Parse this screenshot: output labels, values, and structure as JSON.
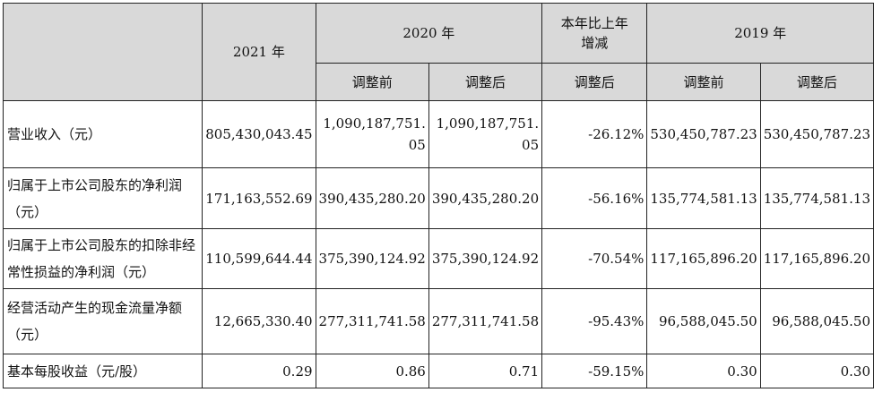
{
  "header": {
    "y2021": "2021 年",
    "y2020": "2020 年",
    "yoy": "本年比上年增减",
    "y2019": "2019 年",
    "before_adj": "调整前",
    "after_adj": "调整后"
  },
  "rows": [
    {
      "label": "营业收入（元）",
      "v2021": "805,430,043.45",
      "v2020_before": "1,090,187,751.05",
      "v2020_after": "1,090,187,751.05",
      "yoy": "-26.12%",
      "v2019_before": "530,450,787.23",
      "v2019_after": "530,450,787.23"
    },
    {
      "label": "归属于上市公司股东的净利润（元）",
      "v2021": "171,163,552.69",
      "v2020_before": "390,435,280.20",
      "v2020_after": "390,435,280.20",
      "yoy": "-56.16%",
      "v2019_before": "135,774,581.13",
      "v2019_after": "135,774,581.13"
    },
    {
      "label": "归属于上市公司股东的扣除非经常性损益的净利润（元）",
      "v2021": "110,599,644.44",
      "v2020_before": "375,390,124.92",
      "v2020_after": "375,390,124.92",
      "yoy": "-70.54%",
      "v2019_before": "117,165,896.20",
      "v2019_after": "117,165,896.20"
    },
    {
      "label": "经营活动产生的现金流量净额（元）",
      "v2021": "12,665,330.40",
      "v2020_before": "277,311,741.58",
      "v2020_after": "277,311,741.58",
      "yoy": "-95.43%",
      "v2019_before": "96,588,045.50",
      "v2019_after": "96,588,045.50"
    },
    {
      "label": "基本每股收益（元/股）",
      "v2021": "0.29",
      "v2020_before": "0.86",
      "v2020_after": "0.71",
      "yoy": "-59.15%",
      "v2019_before": "0.30",
      "v2019_after": "0.30"
    }
  ]
}
